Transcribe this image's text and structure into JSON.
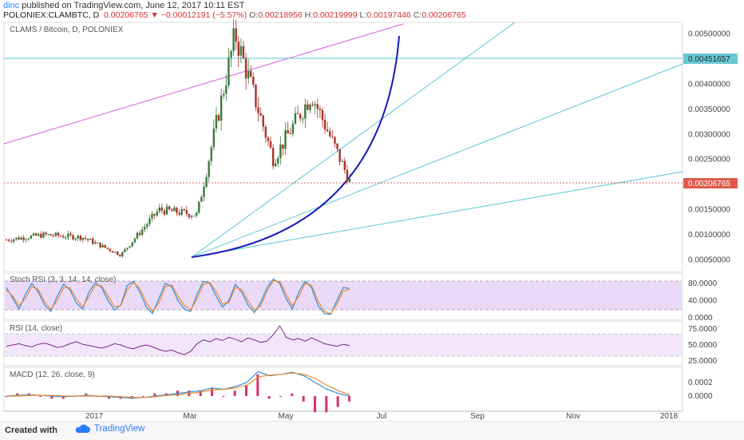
{
  "header": {
    "user": "dinc",
    "published": " published on TradingView.com, June 12, 2017 10:11 EST",
    "symbol": "POLONIEX:CLAMBTC, D",
    "last": "0.00206765",
    "arrow_icon": "down-triangle-icon",
    "change": "−0.00012191 (−5.57%)",
    "open_label": "O:",
    "open": "0.00218956",
    "high_label": "H:",
    "high": "0.00219999",
    "low_label": "L:",
    "low": "0.00197446",
    "close_label": "C:",
    "close": "0.00206765"
  },
  "footer": {
    "created_with": "Created with",
    "brand": "TradingView",
    "logo_icon": "cloud-logo-icon"
  },
  "colors": {
    "up": "#3a7a3a",
    "down": "#a8322a",
    "rsi_fill": "#ead9f7",
    "bg": "#ffffff",
    "price_line": "#5ac8d8"
  },
  "chart_data": [
    {
      "type": "candlestick",
      "title": "CLAMS / Bitcoin, D, POLONIEX",
      "x_labels": [
        "2017",
        "Mar",
        "May",
        "Jul",
        "Sep",
        "Nov",
        "2018"
      ],
      "yticks": [
        "0.00500000",
        "0.00400000",
        "0.00350000",
        "0.00300000",
        "0.00250000",
        "0.00150000",
        "0.00100000",
        "0.00050000"
      ],
      "ylim": [
        0.0003,
        0.0052
      ],
      "horizontal_line": {
        "label": "0.00451657",
        "value": 0.00451657
      },
      "last_price": {
        "label": "0.00206765",
        "value": 0.00206765
      },
      "approx_path": [
        {
          "x": "Dec 2016",
          "y": 0.0009
        },
        {
          "x": "Jan 2017",
          "y": 0.001
        },
        {
          "x": "Feb 2017",
          "y": 0.00095
        },
        {
          "x": "early Mar",
          "y": 0.0006
        },
        {
          "x": "Apr",
          "y": 0.0015
        },
        {
          "x": "late Apr",
          "y": 0.0014
        },
        {
          "x": "May peak",
          "y": 0.005
        },
        {
          "x": "mid May",
          "y": 0.0025
        },
        {
          "x": "late May",
          "y": 0.0038
        },
        {
          "x": "Jun 12",
          "y": 0.00206765
        }
      ],
      "drawings": [
        "magenta trend line",
        "three cyan trend lines",
        "blue parabolic curve",
        "cyan horizontal line at 0.00451657"
      ]
    },
    {
      "type": "line",
      "title": "Stoch RSI (3, 3, 14, 14, close)",
      "yticks": [
        "80.0000",
        "40.0000",
        "0.0000"
      ],
      "band": [
        20,
        80
      ],
      "ylim": [
        0,
        100
      ],
      "series": [
        {
          "values": [
            70,
            45,
            20,
            55,
            80,
            60,
            30,
            15,
            50,
            78,
            65,
            35,
            20,
            60,
            82,
            70,
            40,
            18,
            30,
            75,
            85,
            60,
            25,
            10,
            45,
            80,
            72,
            40,
            20,
            15,
            55,
            85,
            80,
            50,
            25,
            40,
            78,
            60,
            30,
            12,
            35,
            70,
            90,
            80,
            45,
            20,
            60,
            85,
            70,
            30,
            10,
            8,
            40,
            70,
            68
          ]
        },
        {
          "values": [
            65,
            50,
            28,
            45,
            72,
            66,
            38,
            20,
            40,
            70,
            70,
            45,
            25,
            50,
            76,
            74,
            50,
            25,
            28,
            65,
            82,
            68,
            35,
            15,
            35,
            72,
            76,
            50,
            28,
            18,
            45,
            78,
            82,
            60,
            32,
            35,
            70,
            66,
            40,
            18,
            28,
            62,
            86,
            84,
            55,
            28,
            50,
            80,
            76,
            40,
            15,
            10,
            32,
            62,
            66
          ]
        }
      ]
    },
    {
      "type": "line",
      "title": "RSI (14, close)",
      "yticks": [
        "75.0000",
        "50.0000",
        "25.0000"
      ],
      "band": [
        30,
        70
      ],
      "ylim": [
        20,
        85
      ],
      "series": [
        {
          "values": [
            48,
            50,
            52,
            49,
            47,
            51,
            53,
            50,
            46,
            48,
            52,
            55,
            51,
            49,
            47,
            45,
            48,
            52,
            50,
            46,
            44,
            48,
            50,
            47,
            43,
            40,
            42,
            38,
            35,
            40,
            52,
            58,
            55,
            60,
            57,
            62,
            59,
            55,
            61,
            58,
            54,
            56,
            66,
            80,
            62,
            58,
            60,
            56,
            61,
            57,
            52,
            50,
            48,
            51,
            49
          ]
        }
      ]
    },
    {
      "type": "bar+line",
      "title": "MACD (12, 26, close, 9)",
      "yticks": [
        "0.0002",
        "0.0000"
      ],
      "ylim": [
        -0.0002,
        0.0004
      ],
      "macd": [
        0.0,
        1e-05,
        2e-05,
        1e-05,
        0.0,
        -1e-05,
        0.0,
        1e-05,
        0.0,
        -1e-05,
        -2e-05,
        -3e-05,
        -2e-05,
        0.0,
        2e-05,
        4e-05,
        6e-05,
        8e-05,
        0.00012,
        0.0001,
        0.00014,
        0.0002,
        0.00036,
        0.0003,
        0.00032,
        0.00035,
        0.0003,
        0.0002,
        0.0001,
        4e-05,
        0.0
      ],
      "signal": [
        0.0,
        0.0,
        1e-05,
        1e-05,
        1e-05,
        0.0,
        0.0,
        0.0,
        0.0,
        0.0,
        -1e-05,
        -2e-05,
        -2e-05,
        -1e-05,
        1e-05,
        2e-05,
        4e-05,
        6e-05,
        9e-05,
        0.0001,
        0.00012,
        0.00016,
        0.00028,
        0.00031,
        0.00032,
        0.00034,
        0.00032,
        0.00026,
        0.00016,
        8e-05,
        2e-05
      ]
    }
  ]
}
